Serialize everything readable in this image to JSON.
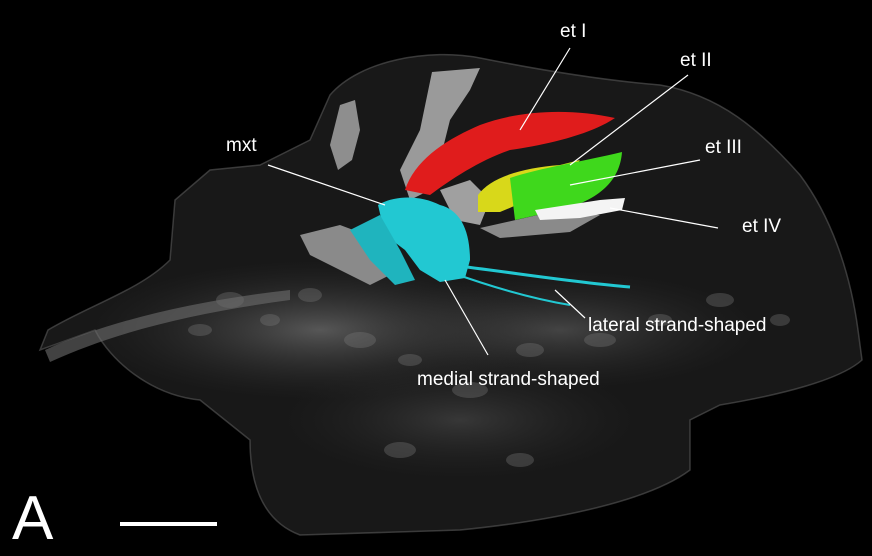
{
  "labels": {
    "et1": "et I",
    "et2": "et II",
    "et3": "et III",
    "et4": "et IV",
    "mxt": "mxt",
    "lateral": "lateral strand-shaped",
    "medial": "medial strand-shaped"
  },
  "panel_letter": "A",
  "colors": {
    "background": "#000000",
    "et1": "#e01c1c",
    "et2": "#d8d81a",
    "et3": "#3fd81c",
    "et4": "#f4f4f4",
    "mxt": "#22c8d2",
    "bone": "#9a9a9a",
    "skull_outline": "#5a5a5a",
    "text": "#ffffff"
  }
}
